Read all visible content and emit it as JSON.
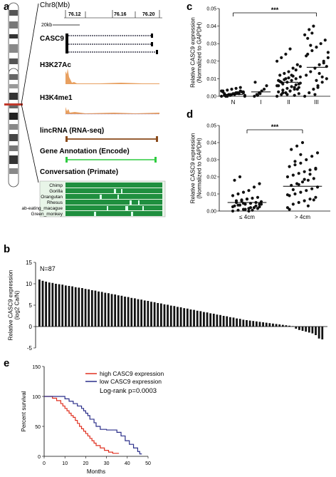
{
  "panels": {
    "a": "a",
    "b": "b",
    "c": "c",
    "d": "d",
    "e": "e"
  },
  "panel_a": {
    "chrom_label": "Chr8(Mb)",
    "coord_ticks": [
      "76.12",
      "76.16",
      "76.20"
    ],
    "scale_label": "20kb",
    "tracks": [
      "CASC9",
      "H3K27Ac",
      "H3K4me1",
      "lincRNA (RNA-seq)",
      "Gene Annotation (Encode)",
      "Conversation (Primate)"
    ],
    "species": [
      "Chimp",
      "Gorilla",
      "Orangutan",
      "Rhesus",
      "ab-eating_macague",
      "Green_monkey"
    ],
    "colors": {
      "green": "#1f8f3f",
      "orange": "#e8a060",
      "brown": "#8a4a1a",
      "bright_green": "#2ecc40",
      "red_marker": "#c0392b"
    }
  },
  "chart_data": [
    {
      "panel": "c",
      "type": "scatter",
      "categories": [
        "N",
        "I",
        "II",
        "III"
      ],
      "ylabel": "Relative CASC9 expression\n(Normalized to GAPDH)",
      "ylim": [
        0,
        0.05
      ],
      "yticks": [
        "0.00",
        "0.01",
        "0.02",
        "0.03",
        "0.04",
        "0.05"
      ],
      "significance": "***",
      "medians": [
        0.001,
        0.0025,
        0.008,
        0.0165
      ],
      "points": [
        [
          0.0,
          0.0005,
          0.001,
          0.0015,
          0.002,
          0.0025,
          0.003,
          0.0035,
          0.004,
          0.0045,
          0.005,
          0.0,
          0.0005,
          0.001,
          0.0015,
          0.002,
          0.0025,
          0.003,
          0.0,
          0.0005,
          0.001,
          0.0015,
          0.002,
          0.0025,
          0.0,
          0.001,
          0.002,
          0.003,
          0.0005,
          0.0015
        ],
        [
          0.0,
          0.001,
          0.002,
          0.003,
          0.004,
          0.006,
          0.008,
          0.0005,
          0.0015
        ],
        [
          0.0,
          0.001,
          0.002,
          0.003,
          0.004,
          0.005,
          0.006,
          0.007,
          0.008,
          0.009,
          0.01,
          0.011,
          0.012,
          0.013,
          0.014,
          0.016,
          0.018,
          0.02,
          0.022,
          0.024,
          0.027,
          0.0005,
          0.0015,
          0.0025,
          0.0035,
          0.0045,
          0.0055,
          0.0065,
          0.0075,
          0.0085,
          0.0095,
          0.0105,
          0.0115,
          0.004,
          0.006,
          0.008,
          0.01,
          0.003,
          0.005,
          0.007,
          0.009,
          0.002,
          0.001,
          0.012,
          0.015,
          0.017
        ],
        [
          0.0,
          0.002,
          0.004,
          0.006,
          0.008,
          0.01,
          0.012,
          0.014,
          0.016,
          0.018,
          0.02,
          0.022,
          0.024,
          0.026,
          0.028,
          0.03,
          0.032,
          0.035,
          0.038,
          0.04,
          0.005,
          0.011,
          0.017,
          0.023,
          0.029,
          0.001,
          0.013,
          0.019,
          0.025,
          0.033,
          0.036,
          0.009
        ]
      ]
    },
    {
      "panel": "d",
      "type": "scatter",
      "categories": [
        "≤ 4cm",
        "> 4cm"
      ],
      "ylabel": "Relative CASC9 expression\n(Normalized to GAPDH)",
      "ylim": [
        0,
        0.05
      ],
      "yticks": [
        "0.00",
        "0.01",
        "0.02",
        "0.03",
        "0.04",
        "0.05"
      ],
      "significance": "***",
      "medians": [
        0.005,
        0.0145
      ],
      "points": [
        [
          0.0,
          0.0005,
          0.001,
          0.0015,
          0.002,
          0.0025,
          0.003,
          0.0035,
          0.004,
          0.0045,
          0.005,
          0.0055,
          0.006,
          0.0065,
          0.007,
          0.0075,
          0.008,
          0.009,
          0.01,
          0.011,
          0.012,
          0.014,
          0.016,
          0.018,
          0.02,
          0.001,
          0.002,
          0.003,
          0.004,
          0.005,
          0.006,
          0.007,
          0.0005,
          0.0015,
          0.0025,
          0.0035,
          0.0045,
          0.0,
          0.002,
          0.004
        ],
        [
          0.002,
          0.004,
          0.005,
          0.006,
          0.007,
          0.008,
          0.009,
          0.01,
          0.011,
          0.012,
          0.013,
          0.014,
          0.015,
          0.016,
          0.017,
          0.018,
          0.019,
          0.02,
          0.021,
          0.022,
          0.023,
          0.024,
          0.025,
          0.026,
          0.027,
          0.028,
          0.03,
          0.032,
          0.034,
          0.036,
          0.038,
          0.04,
          0.003,
          0.0065,
          0.0095,
          0.0125,
          0.0155,
          0.0185,
          0.0215,
          0.0245,
          0.001,
          0.029,
          0.033
        ]
      ]
    },
    {
      "panel": "b",
      "type": "bar",
      "annotation": "N=87",
      "ylabel": "Relative CASC9 expression\n(log2 Ca/N)",
      "ylim": [
        -5,
        15
      ],
      "yticks": [
        "15",
        "10",
        "5",
        "0",
        "-5"
      ],
      "values": [
        11,
        10.7,
        10.5,
        10.3,
        10.2,
        10,
        9.9,
        9.8,
        9.6,
        9.5,
        9.4,
        9.2,
        9.1,
        9,
        8.8,
        8.7,
        8.5,
        8.4,
        8.2,
        8.1,
        7.9,
        7.8,
        7.6,
        7.5,
        7.3,
        7.2,
        7,
        6.9,
        6.7,
        6.6,
        6.4,
        6.3,
        6.1,
        6,
        5.8,
        5.7,
        5.5,
        5.4,
        5.2,
        5.1,
        4.9,
        4.8,
        4.6,
        4.5,
        4.3,
        4.2,
        4,
        3.9,
        3.7,
        3.6,
        3.4,
        3.3,
        3.1,
        3,
        2.8,
        2.7,
        2.5,
        2.4,
        2.2,
        2.1,
        1.9,
        1.8,
        1.6,
        1.5,
        1.4,
        1.3,
        1.2,
        1.1,
        1,
        0.9,
        0.8,
        0.7,
        0.6,
        0.5,
        0.4,
        0.3,
        0.2,
        0.1,
        -0.5,
        -0.8,
        -1,
        -1.2,
        -1.4,
        -1.6,
        -2,
        -2.8,
        -3
      ]
    },
    {
      "panel": "e",
      "type": "line",
      "ylabel": "Percent survival",
      "xlabel": "Months",
      "xlim": [
        0,
        50
      ],
      "ylim": [
        0,
        150
      ],
      "xticks": [
        "0",
        "10",
        "20",
        "30",
        "40",
        "50"
      ],
      "yticks": [
        "0",
        "50",
        "100",
        "150"
      ],
      "annotation": "Log-rank p=0.0003",
      "series": [
        {
          "name": "high CASC9 expression",
          "color": "#e03020",
          "steps": [
            [
              0,
              100
            ],
            [
              3,
              100
            ],
            [
              4,
              97
            ],
            [
              6,
              93
            ],
            [
              8,
              88
            ],
            [
              9,
              84
            ],
            [
              10,
              80
            ],
            [
              11,
              76
            ],
            [
              12,
              72
            ],
            [
              13,
              68
            ],
            [
              14,
              65
            ],
            [
              15,
              60
            ],
            [
              16,
              55
            ],
            [
              17,
              50
            ],
            [
              18,
              46
            ],
            [
              19,
              42
            ],
            [
              20,
              38
            ],
            [
              21,
              34
            ],
            [
              22,
              30
            ],
            [
              23,
              26
            ],
            [
              24,
              22
            ],
            [
              25,
              18
            ],
            [
              27,
              14
            ],
            [
              29,
              10
            ],
            [
              31,
              7
            ],
            [
              33,
              5
            ],
            [
              36,
              5
            ]
          ]
        },
        {
          "name": "low CASC9 expression",
          "color": "#2b2f8a",
          "steps": [
            [
              0,
              100
            ],
            [
              8,
              100
            ],
            [
              10,
              96
            ],
            [
              12,
              92
            ],
            [
              14,
              88
            ],
            [
              16,
              84
            ],
            [
              18,
              80
            ],
            [
              19,
              76
            ],
            [
              20,
              72
            ],
            [
              21,
              68
            ],
            [
              22,
              62
            ],
            [
              24,
              56
            ],
            [
              25,
              50
            ],
            [
              27,
              45
            ],
            [
              30,
              44
            ],
            [
              34,
              44
            ],
            [
              35,
              40
            ],
            [
              37,
              34
            ],
            [
              39,
              26
            ],
            [
              41,
              20
            ],
            [
              43,
              14
            ],
            [
              45,
              8
            ],
            [
              46,
              4
            ],
            [
              47,
              4
            ]
          ]
        }
      ]
    }
  ]
}
